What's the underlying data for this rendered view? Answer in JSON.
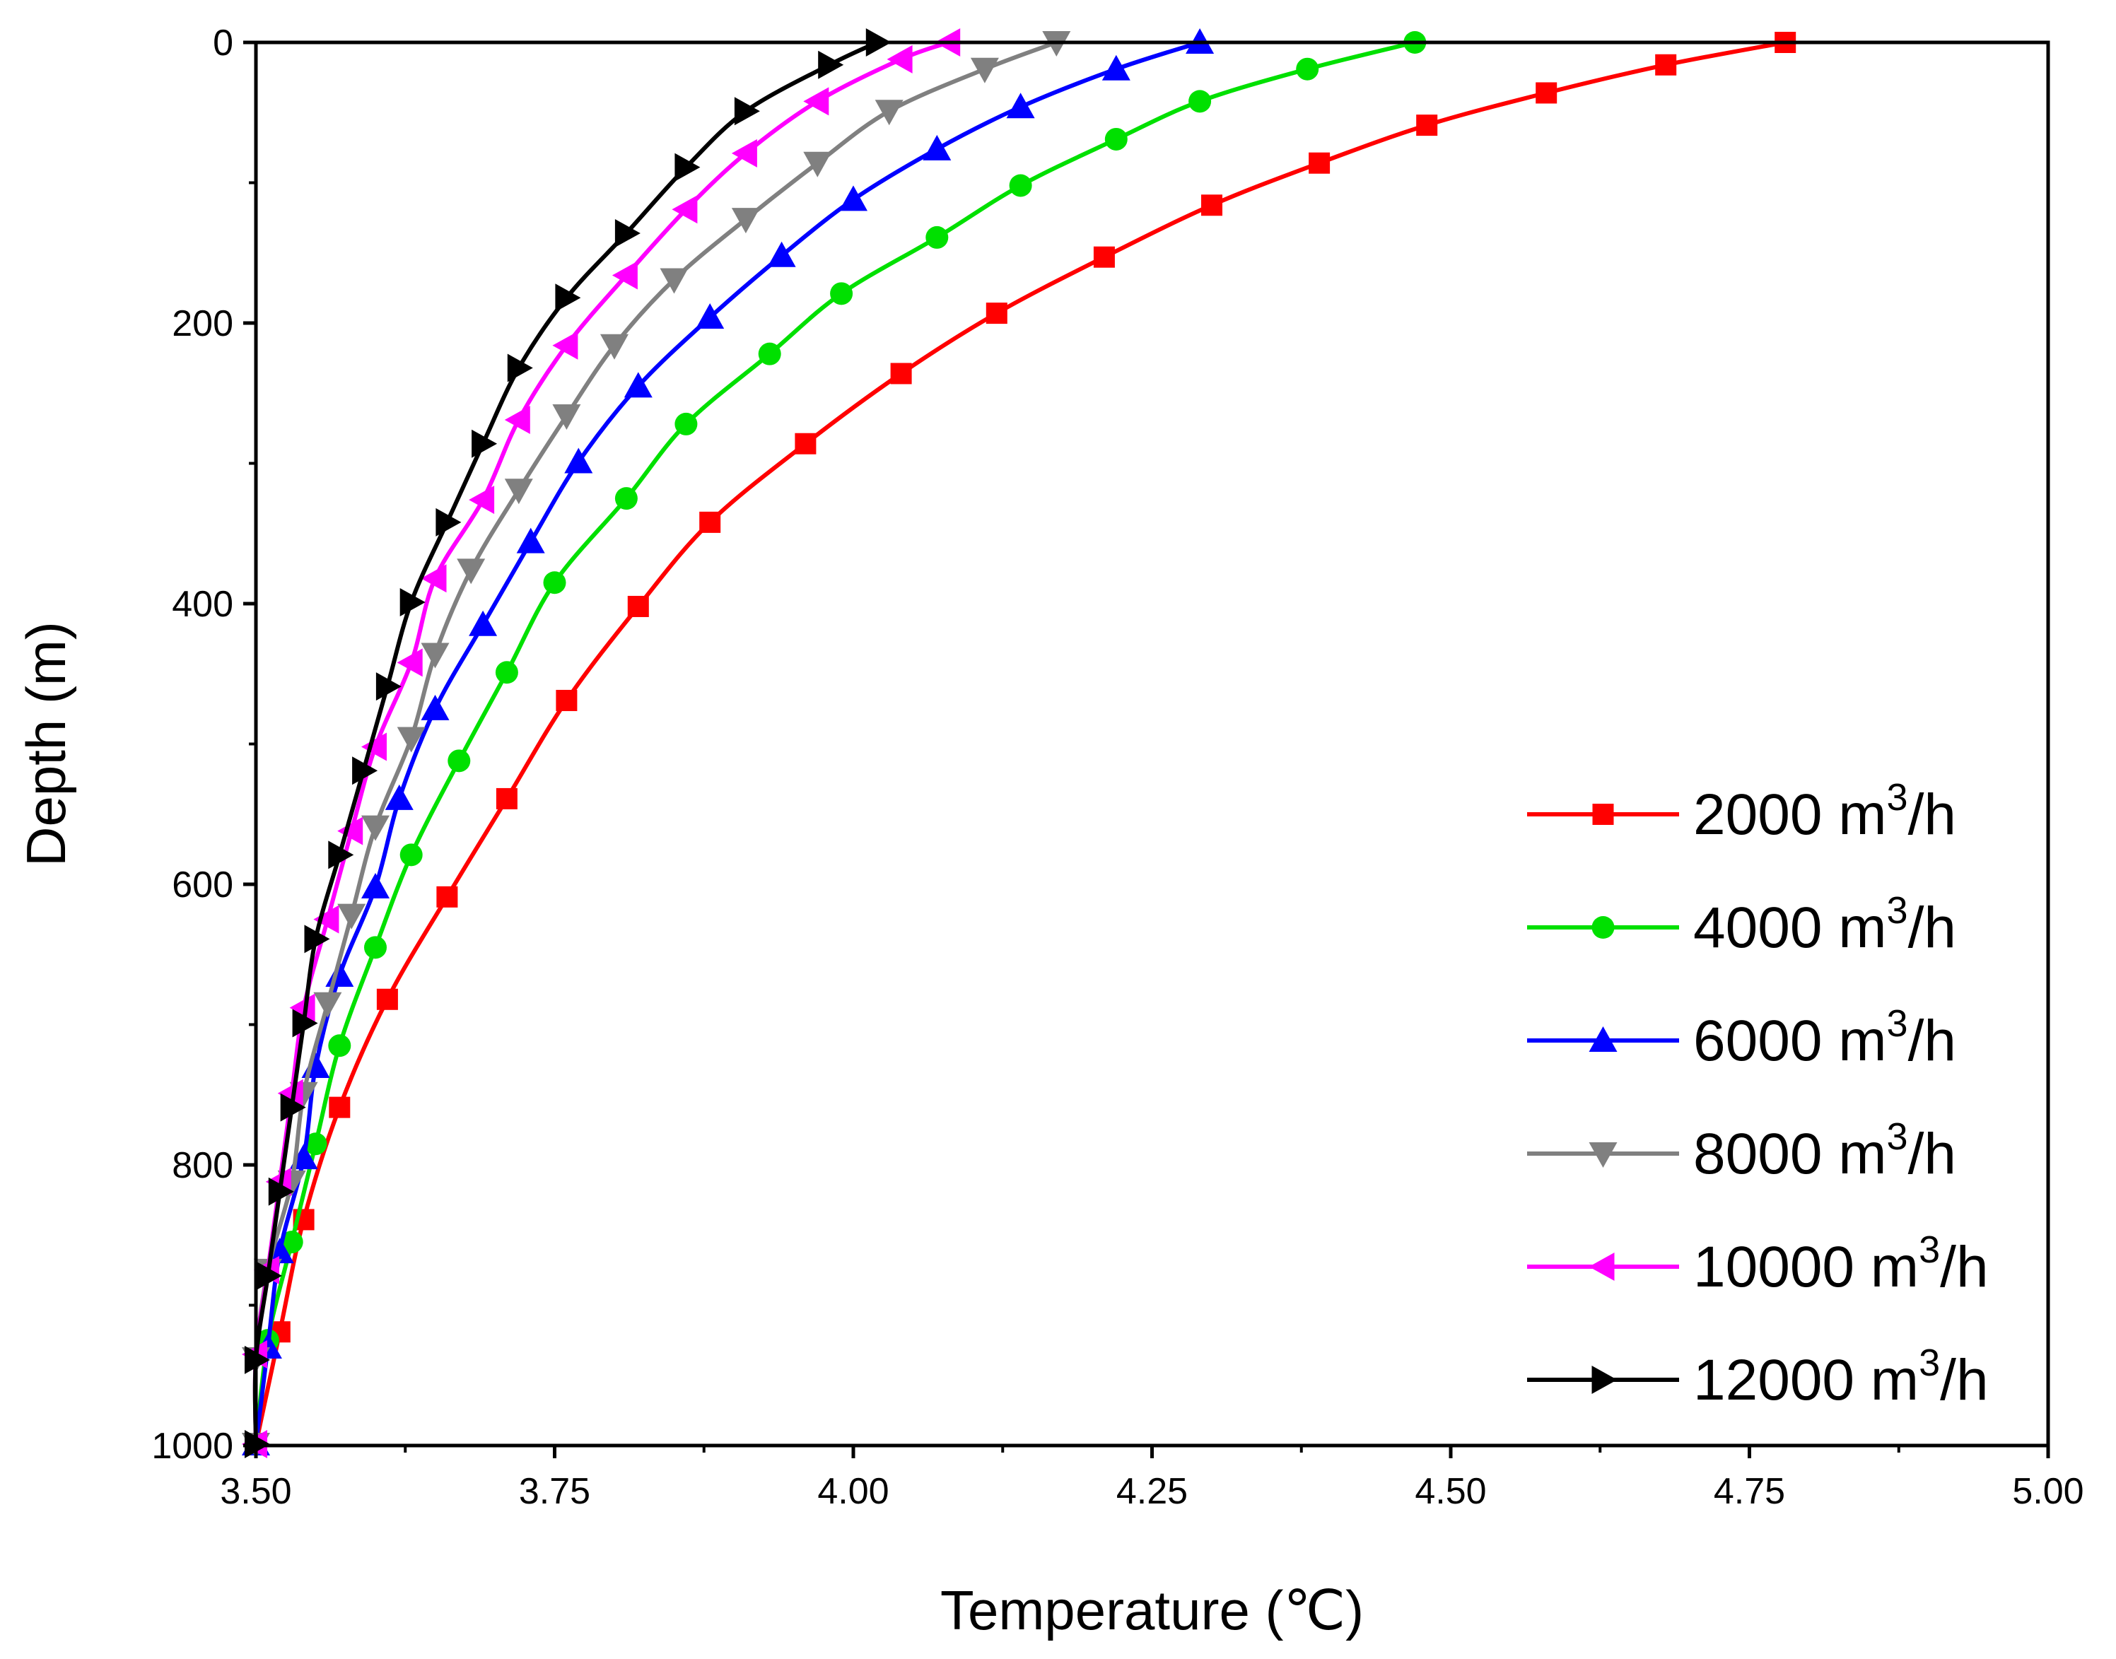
{
  "chart_data": {
    "type": "line",
    "xlabel": "Temperature (℃)",
    "ylabel": "Depth (m)",
    "xlim": [
      3.5,
      5.0
    ],
    "ylim": [
      0,
      1000
    ],
    "y_inverted": true,
    "xticks": [
      "3.50",
      "3.75",
      "4.00",
      "4.25",
      "4.50",
      "4.75",
      "5.00"
    ],
    "yticks": [
      "0",
      "200",
      "400",
      "600",
      "800",
      "1000"
    ],
    "grid": false,
    "legend_position": "bottom-right",
    "series": [
      {
        "name": "2000 m³/h",
        "name_base": "2000 m",
        "name_sup": "3",
        "name_tail": "/h",
        "color": "#ff0000",
        "marker": "square",
        "points": [
          [
            4.78,
            0
          ],
          [
            4.68,
            16
          ],
          [
            4.58,
            36
          ],
          [
            4.48,
            59
          ],
          [
            4.39,
            86
          ],
          [
            4.3,
            116
          ],
          [
            4.21,
            153
          ],
          [
            4.12,
            193
          ],
          [
            4.04,
            236
          ],
          [
            3.96,
            286
          ],
          [
            3.88,
            342
          ],
          [
            3.82,
            402
          ],
          [
            3.76,
            469
          ],
          [
            3.71,
            539
          ],
          [
            3.66,
            609
          ],
          [
            3.61,
            682
          ],
          [
            3.57,
            759
          ],
          [
            3.54,
            839
          ],
          [
            3.52,
            919
          ],
          [
            3.5,
            999
          ]
        ]
      },
      {
        "name": "4000 m³/h",
        "name_base": "4000 m",
        "name_sup": "3",
        "name_tail": "/h",
        "color": "#00e000",
        "marker": "circle",
        "points": [
          [
            4.47,
            0
          ],
          [
            4.38,
            19
          ],
          [
            4.29,
            42
          ],
          [
            4.22,
            69
          ],
          [
            4.14,
            102
          ],
          [
            4.07,
            139
          ],
          [
            3.99,
            179
          ],
          [
            3.93,
            222
          ],
          [
            3.86,
            272
          ],
          [
            3.81,
            325
          ],
          [
            3.75,
            385
          ],
          [
            3.71,
            449
          ],
          [
            3.67,
            512
          ],
          [
            3.63,
            579
          ],
          [
            3.6,
            645
          ],
          [
            3.57,
            715
          ],
          [
            3.55,
            785
          ],
          [
            3.53,
            855
          ],
          [
            3.51,
            925
          ],
          [
            3.5,
            999
          ]
        ]
      },
      {
        "name": "6000 m³/h",
        "name_base": "6000 m",
        "name_sup": "3",
        "name_tail": "/h",
        "color": "#0000ff",
        "marker": "triangle-up",
        "points": [
          [
            4.29,
            0
          ],
          [
            4.22,
            19
          ],
          [
            4.14,
            46
          ],
          [
            4.07,
            76
          ],
          [
            4.0,
            112
          ],
          [
            3.94,
            152
          ],
          [
            3.88,
            196
          ],
          [
            3.82,
            245
          ],
          [
            3.77,
            299
          ],
          [
            3.73,
            356
          ],
          [
            3.69,
            415
          ],
          [
            3.65,
            475
          ],
          [
            3.62,
            539
          ],
          [
            3.6,
            602
          ],
          [
            3.57,
            665
          ],
          [
            3.55,
            730
          ],
          [
            3.54,
            795
          ],
          [
            3.52,
            862
          ],
          [
            3.51,
            930
          ],
          [
            3.5,
            999
          ]
        ]
      },
      {
        "name": "8000 m³/h",
        "name_base": "8000 m",
        "name_sup": "3",
        "name_tail": "/h",
        "color": "#808080",
        "marker": "triangle-down",
        "points": [
          [
            4.17,
            0
          ],
          [
            4.11,
            19
          ],
          [
            4.03,
            49
          ],
          [
            3.97,
            86
          ],
          [
            3.91,
            126
          ],
          [
            3.85,
            169
          ],
          [
            3.8,
            216
          ],
          [
            3.76,
            266
          ],
          [
            3.72,
            319
          ],
          [
            3.68,
            376
          ],
          [
            3.65,
            436
          ],
          [
            3.63,
            496
          ],
          [
            3.6,
            559
          ],
          [
            3.58,
            622
          ],
          [
            3.56,
            685
          ],
          [
            3.54,
            749
          ],
          [
            3.53,
            812
          ],
          [
            3.51,
            875
          ],
          [
            3.5,
            938
          ],
          [
            3.5,
            999
          ]
        ]
      },
      {
        "name": "10000 m³/h",
        "name_base": "10000 m",
        "name_sup": "3",
        "name_tail": "/h",
        "color": "#ff00ff",
        "marker": "triangle-left",
        "points": [
          [
            4.08,
            0
          ],
          [
            4.04,
            12
          ],
          [
            3.97,
            42
          ],
          [
            3.91,
            79
          ],
          [
            3.86,
            119
          ],
          [
            3.81,
            166
          ],
          [
            3.76,
            216
          ],
          [
            3.72,
            269
          ],
          [
            3.69,
            326
          ],
          [
            3.65,
            382
          ],
          [
            3.63,
            442
          ],
          [
            3.6,
            502
          ],
          [
            3.58,
            562
          ],
          [
            3.56,
            625
          ],
          [
            3.54,
            688
          ],
          [
            3.53,
            749
          ],
          [
            3.52,
            812
          ],
          [
            3.51,
            875
          ],
          [
            3.5,
            935
          ],
          [
            3.5,
            999
          ]
        ]
      },
      {
        "name": "12000 m³/h",
        "name_base": "12000 m",
        "name_sup": "3",
        "name_tail": "/h",
        "color": "#000000",
        "marker": "triangle-right",
        "points": [
          [
            4.02,
            0
          ],
          [
            3.98,
            16
          ],
          [
            3.91,
            49
          ],
          [
            3.86,
            89
          ],
          [
            3.81,
            136
          ],
          [
            3.76,
            182
          ],
          [
            3.72,
            232
          ],
          [
            3.69,
            286
          ],
          [
            3.66,
            342
          ],
          [
            3.63,
            399
          ],
          [
            3.61,
            459
          ],
          [
            3.59,
            519
          ],
          [
            3.57,
            579
          ],
          [
            3.55,
            639
          ],
          [
            3.54,
            699
          ],
          [
            3.53,
            759
          ],
          [
            3.52,
            819
          ],
          [
            3.51,
            879
          ],
          [
            3.5,
            939
          ],
          [
            3.5,
            999
          ]
        ]
      }
    ]
  }
}
